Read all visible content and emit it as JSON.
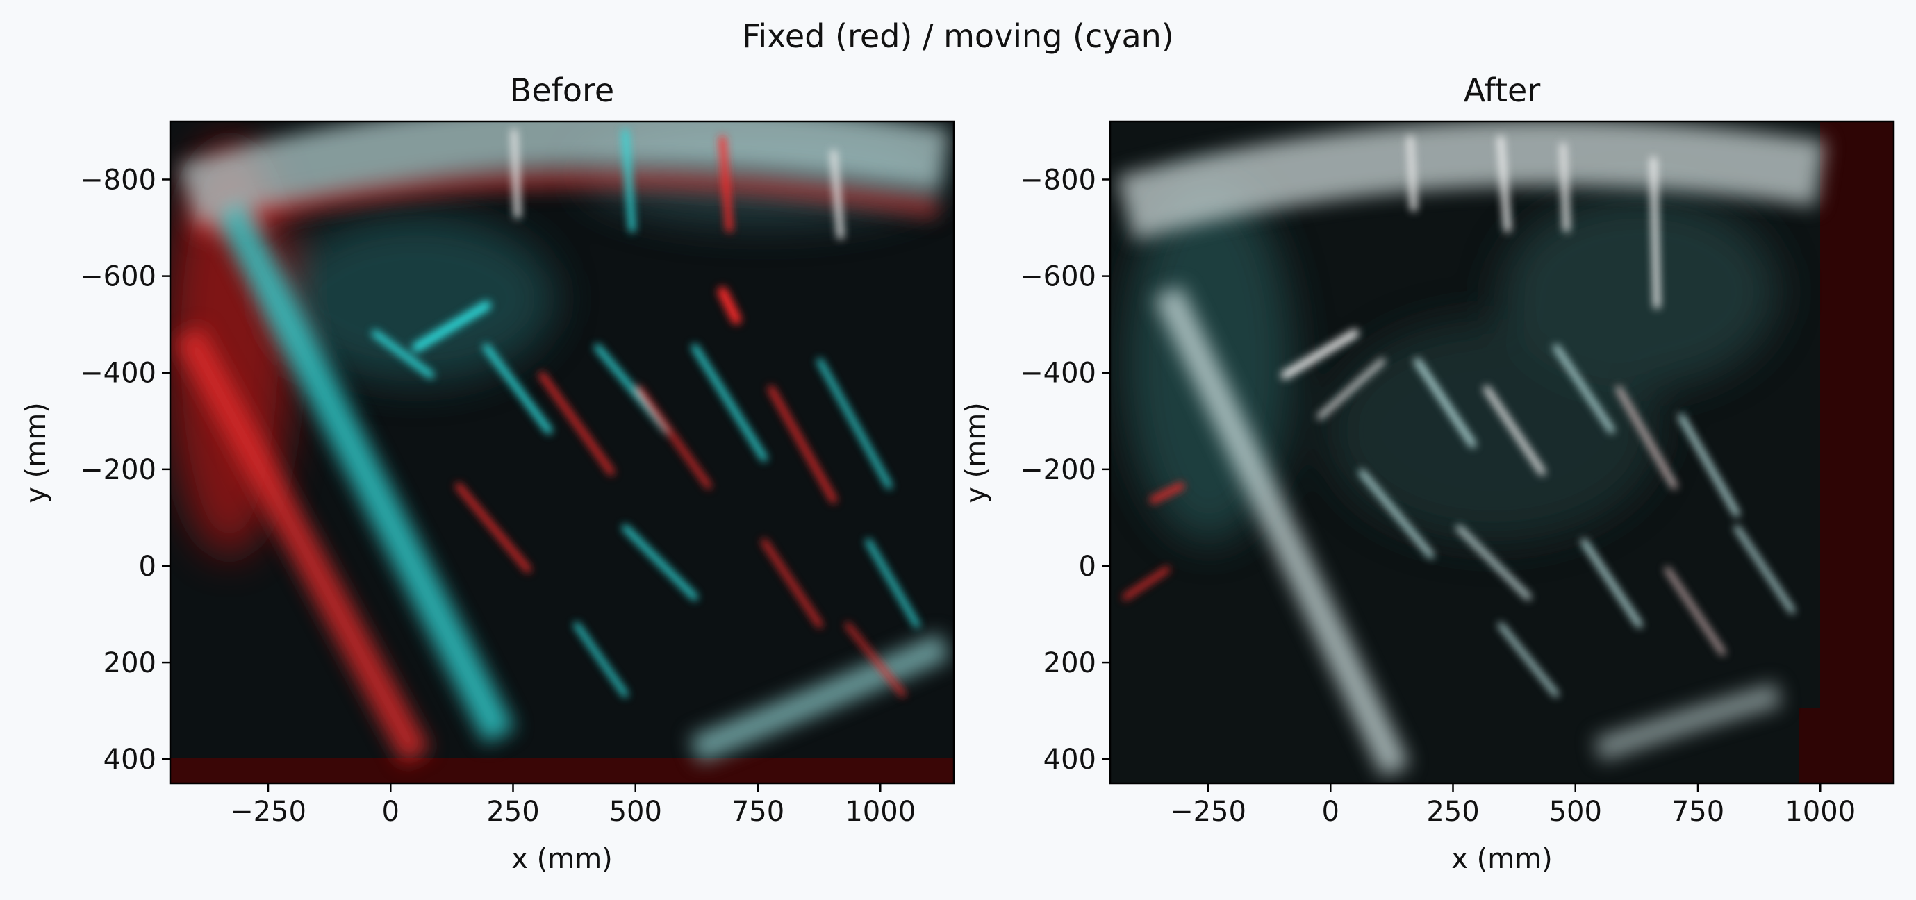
{
  "figure": {
    "suptitle": "Fixed (red) / moving (cyan)"
  },
  "colors": {
    "background": "#f7f9fb",
    "fixed": "#ff2020",
    "moving": "#20e0e0",
    "overlap": "#dcdcdc",
    "tissue_dark": "#0b1214"
  },
  "chart_data": [
    {
      "type": "heatmap",
      "panel": "before",
      "title": "Before",
      "xlabel": "x (mm)",
      "ylabel": "y (mm)",
      "xlim": [
        -450,
        1150
      ],
      "ylim": [
        450,
        -920
      ],
      "xticks": [
        -250,
        0,
        250,
        500,
        750,
        1000
      ],
      "yticks": [
        -800,
        -600,
        -400,
        -200,
        0,
        200,
        400
      ],
      "xtick_labels": [
        "−250",
        "0",
        "250",
        "500",
        "750",
        "1000"
      ],
      "ytick_labels": [
        "−800",
        "−600",
        "−400",
        "−200",
        "0",
        "200",
        "400"
      ],
      "grid": false,
      "image": "RGB overlay of fixed (red) and moving (cyan) ultrasound volumes, misaligned"
    },
    {
      "type": "heatmap",
      "panel": "after",
      "title": "After",
      "xlabel": "x (mm)",
      "ylabel": "y (mm)",
      "xlim": [
        -450,
        1150
      ],
      "ylim": [
        450,
        -920
      ],
      "xticks": [
        -250,
        0,
        250,
        500,
        750,
        1000
      ],
      "yticks": [
        -800,
        -600,
        -400,
        -200,
        0,
        200,
        400
      ],
      "xtick_labels": [
        "−250",
        "0",
        "250",
        "500",
        "750",
        "1000"
      ],
      "ytick_labels": [
        "−800",
        "−600",
        "−400",
        "−200",
        "0",
        "200",
        "400"
      ],
      "grid": false,
      "image": "RGB overlay of fixed (red) and moving (cyan) ultrasound volumes, aligned"
    }
  ]
}
